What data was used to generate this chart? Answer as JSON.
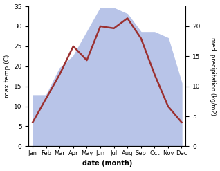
{
  "months": [
    "Jan",
    "Feb",
    "Mar",
    "Apr",
    "May",
    "Jun",
    "Jul",
    "Aug",
    "Sep",
    "Oct",
    "Nov",
    "Dec"
  ],
  "temperature": [
    6,
    12,
    18,
    25,
    21.5,
    30,
    29.5,
    32,
    27,
    18,
    10,
    6
  ],
  "precipitation": [
    8.5,
    8.5,
    13,
    15,
    19,
    23,
    23,
    22,
    19,
    19,
    18,
    10.5
  ],
  "temp_color": "#9B3030",
  "precip_fill_color": "#b8c4e8",
  "temp_ylim": [
    0,
    35
  ],
  "precip_ylim": [
    0,
    23.3
  ],
  "ylabel_left": "max temp (C)",
  "ylabel_right": "med. precipitation (kg/m2)",
  "xlabel": "date (month)",
  "background_color": "#ffffff",
  "right_yticks": [
    0,
    5,
    10,
    15,
    20
  ],
  "left_yticks": [
    0,
    5,
    10,
    15,
    20,
    25,
    30,
    35
  ]
}
